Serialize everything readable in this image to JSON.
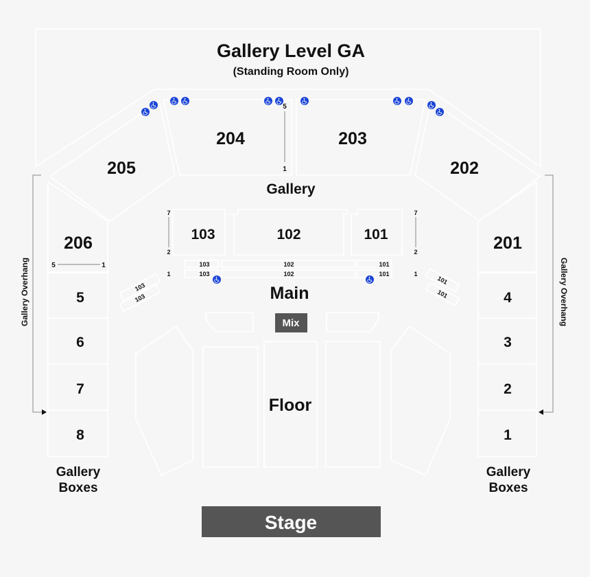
{
  "title": "Gallery Level GA",
  "subtitle": "(Standing Room Only)",
  "gallery": {
    "label": "Gallery",
    "sections": {
      "s205": "205",
      "s204": "204",
      "s203": "203",
      "s202": "202",
      "s206": "206",
      "s201": "201"
    },
    "row_labels": {
      "top": "5",
      "bottom": "1"
    },
    "s206_rows": {
      "left": "5",
      "right": "1"
    }
  },
  "gallery_overhang": "Gallery Overhang",
  "gallery_boxes": {
    "label_line1": "Gallery",
    "label_line2": "Boxes",
    "left": [
      "5",
      "6",
      "7",
      "8"
    ],
    "right": [
      "4",
      "3",
      "2",
      "1"
    ]
  },
  "main": {
    "label": "Main",
    "sections": [
      "103",
      "102",
      "101"
    ],
    "row_labels": {
      "top": "7",
      "mid": "2",
      "bottom": "1"
    },
    "side_rows_left": [
      "103",
      "103"
    ],
    "side_rows_right": [
      "101",
      "101"
    ]
  },
  "mix": "Mix",
  "floor": "Floor",
  "stage": "Stage",
  "colors": {
    "background": "#f6f6f6",
    "accessible": "#1a44d6",
    "dark_block": "#555555"
  },
  "accessible_icon": "wheelchair-icon"
}
